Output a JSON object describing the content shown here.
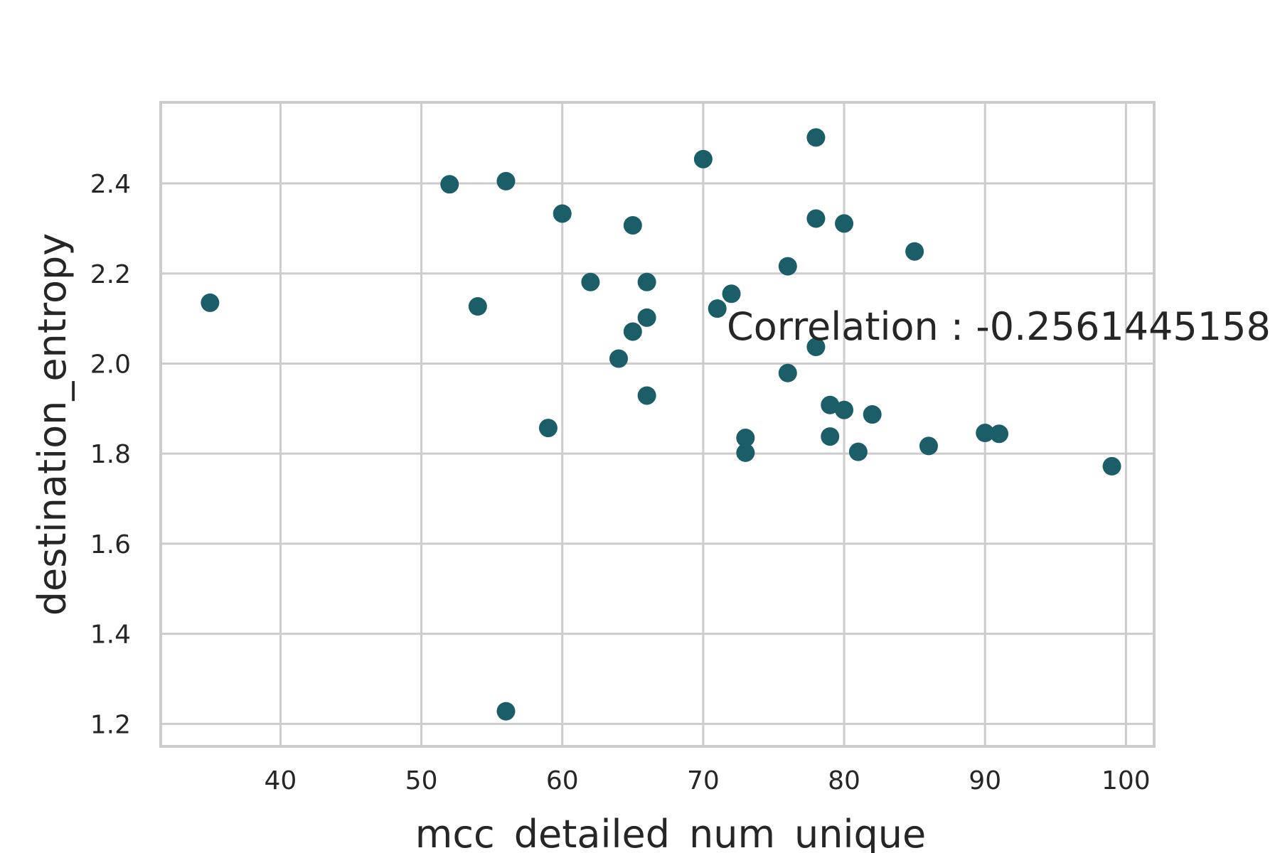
{
  "chart_data": {
    "type": "scatter",
    "title": "",
    "xlabel": "mcc_detailed_num_unique",
    "ylabel": "destination_entropy",
    "xlim": [
      31.5,
      102
    ],
    "ylim": [
      1.15,
      2.58
    ],
    "xticks": [
      40,
      50,
      60,
      70,
      80,
      90,
      100
    ],
    "yticks": [
      1.2,
      1.4,
      1.6,
      1.8,
      2.0,
      2.2,
      2.4
    ],
    "grid": true,
    "legend": "none",
    "color": "#1b5e68",
    "annotation": "Correlation : -0.2561445158",
    "points": [
      {
        "x": 35,
        "y": 2.135
      },
      {
        "x": 52,
        "y": 2.398
      },
      {
        "x": 54,
        "y": 2.127
      },
      {
        "x": 56,
        "y": 2.405
      },
      {
        "x": 56,
        "y": 1.228
      },
      {
        "x": 59,
        "y": 1.857
      },
      {
        "x": 60,
        "y": 2.333
      },
      {
        "x": 62,
        "y": 2.181
      },
      {
        "x": 64,
        "y": 2.011
      },
      {
        "x": 65,
        "y": 2.307
      },
      {
        "x": 65,
        "y": 2.071
      },
      {
        "x": 66,
        "y": 2.181
      },
      {
        "x": 66,
        "y": 2.102
      },
      {
        "x": 66,
        "y": 1.929
      },
      {
        "x": 70,
        "y": 2.454
      },
      {
        "x": 71,
        "y": 2.122
      },
      {
        "x": 72,
        "y": 2.155
      },
      {
        "x": 73,
        "y": 1.835
      },
      {
        "x": 73,
        "y": 1.802
      },
      {
        "x": 76,
        "y": 2.216
      },
      {
        "x": 76,
        "y": 1.979
      },
      {
        "x": 78,
        "y": 2.502
      },
      {
        "x": 78,
        "y": 2.322
      },
      {
        "x": 78,
        "y": 2.037
      },
      {
        "x": 79,
        "y": 1.908
      },
      {
        "x": 79,
        "y": 1.838
      },
      {
        "x": 80,
        "y": 2.311
      },
      {
        "x": 80,
        "y": 1.897
      },
      {
        "x": 81,
        "y": 1.804
      },
      {
        "x": 82,
        "y": 1.887
      },
      {
        "x": 85,
        "y": 2.249
      },
      {
        "x": 86,
        "y": 1.817
      },
      {
        "x": 90,
        "y": 1.846
      },
      {
        "x": 91,
        "y": 1.844
      },
      {
        "x": 99,
        "y": 1.772
      }
    ]
  }
}
